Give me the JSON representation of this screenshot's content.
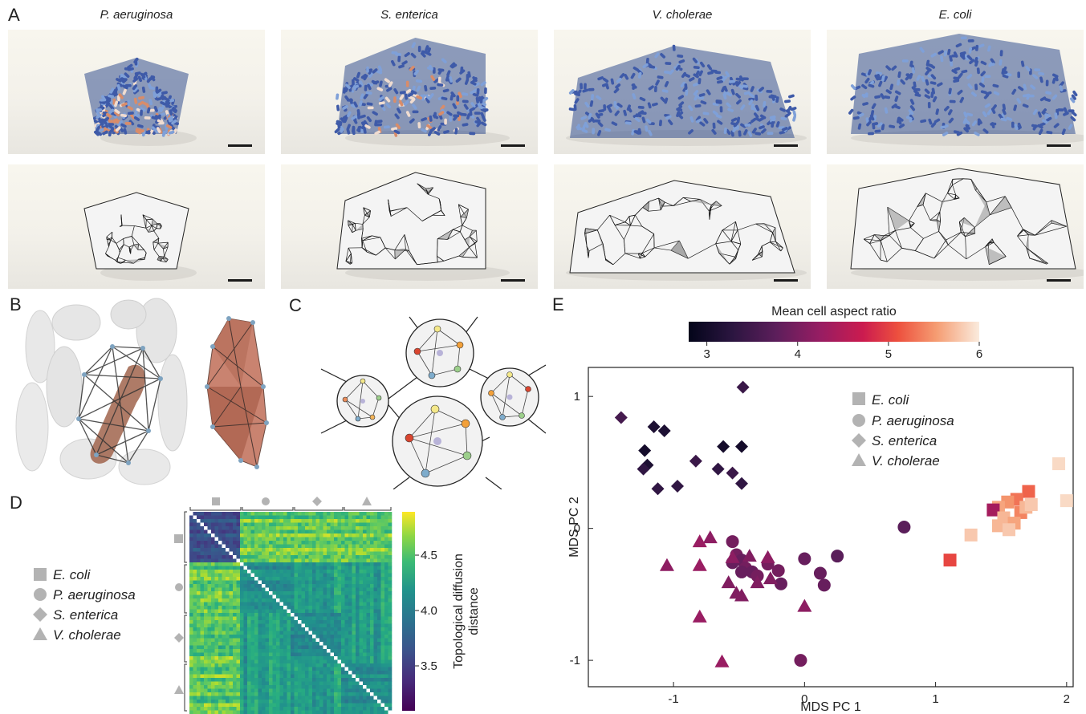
{
  "panels": {
    "a": "A",
    "b": "B",
    "c": "C",
    "d": "D",
    "e": "E"
  },
  "species_titles": [
    "P. aeruginosa",
    "S. enterica",
    "V. cholerae",
    "E. coli"
  ],
  "colors": {
    "cell_blue": "#3e5aa8",
    "cell_orange": "#d88c6a",
    "mesh_gray": "#bfbfbf",
    "marker_gray": "#b3b3b3",
    "viridis_low": "#440154",
    "viridis_high": "#fde725"
  },
  "legend_species": [
    "E. coli",
    "P. aeruginosa",
    "S. enterica",
    "V. cholerae"
  ],
  "heatmap": {
    "cbar_ticks": [
      "3.5",
      "4.0",
      "4.5"
    ],
    "cbar_label_line1": "Topological diffusion",
    "cbar_label_line2": "distance"
  },
  "chart_data": {
    "type": "scatter",
    "title": "",
    "xlabel": "MDS PC 1",
    "ylabel": "MDS PC 2",
    "xlim": [
      -1.65,
      2.05
    ],
    "ylim": [
      -1.2,
      1.22
    ],
    "xticks": [
      "-1",
      "0",
      "1",
      "2"
    ],
    "yticks": [
      "-1",
      "0",
      "1"
    ],
    "colorbar": {
      "label": "Mean cell aspect ratio",
      "range": [
        2.8,
        6.0
      ],
      "ticks": [
        "3",
        "4",
        "5",
        "6"
      ],
      "colormap": "rocket"
    },
    "legend_placement": "top-right",
    "series": [
      {
        "name": "E. coli",
        "marker": "square",
        "points": [
          {
            "x": 1.94,
            "y": 0.49,
            "c": 5.9
          },
          {
            "x": 2.0,
            "y": 0.21,
            "c": 5.9
          },
          {
            "x": 1.71,
            "y": 0.28,
            "c": 5.2
          },
          {
            "x": 1.62,
            "y": 0.22,
            "c": 5.3
          },
          {
            "x": 1.55,
            "y": 0.2,
            "c": 5.5
          },
          {
            "x": 1.48,
            "y": 0.16,
            "c": 5.6
          },
          {
            "x": 1.44,
            "y": 0.14,
            "c": 4.3
          },
          {
            "x": 1.65,
            "y": 0.12,
            "c": 5.4
          },
          {
            "x": 1.69,
            "y": 0.16,
            "c": 5.7
          },
          {
            "x": 1.73,
            "y": 0.18,
            "c": 5.8
          },
          {
            "x": 1.52,
            "y": 0.08,
            "c": 5.7
          },
          {
            "x": 1.6,
            "y": 0.04,
            "c": 5.6
          },
          {
            "x": 1.48,
            "y": 0.02,
            "c": 5.7
          },
          {
            "x": 1.56,
            "y": -0.01,
            "c": 5.8
          },
          {
            "x": 1.27,
            "y": -0.05,
            "c": 5.8
          },
          {
            "x": 1.11,
            "y": -0.24,
            "c": 5.0
          }
        ]
      },
      {
        "name": "P. aeruginosa",
        "marker": "circle",
        "points": [
          {
            "x": 0.76,
            "y": 0.01,
            "c": 3.7
          },
          {
            "x": -0.55,
            "y": -0.1,
            "c": 3.9
          },
          {
            "x": -0.52,
            "y": -0.2,
            "c": 3.9
          },
          {
            "x": -0.48,
            "y": -0.24,
            "c": 3.8
          },
          {
            "x": -0.55,
            "y": -0.26,
            "c": 3.8
          },
          {
            "x": -0.45,
            "y": -0.3,
            "c": 3.9
          },
          {
            "x": -0.4,
            "y": -0.33,
            "c": 3.8
          },
          {
            "x": -0.48,
            "y": -0.33,
            "c": 3.8
          },
          {
            "x": -0.36,
            "y": -0.36,
            "c": 3.9
          },
          {
            "x": -0.28,
            "y": -0.27,
            "c": 3.9
          },
          {
            "x": -0.2,
            "y": -0.32,
            "c": 3.9
          },
          {
            "x": -0.18,
            "y": -0.42,
            "c": 3.8
          },
          {
            "x": 0.0,
            "y": -0.23,
            "c": 3.8
          },
          {
            "x": 0.25,
            "y": -0.21,
            "c": 3.7
          },
          {
            "x": 0.12,
            "y": -0.34,
            "c": 3.8
          },
          {
            "x": 0.15,
            "y": -0.43,
            "c": 3.8
          },
          {
            "x": -0.03,
            "y": -1.0,
            "c": 3.9
          }
        ]
      },
      {
        "name": "S. enterica",
        "marker": "diamond",
        "points": [
          {
            "x": -1.4,
            "y": 0.84,
            "c": 3.5
          },
          {
            "x": -0.47,
            "y": 1.07,
            "c": 3.4
          },
          {
            "x": -1.15,
            "y": 0.77,
            "c": 3.1
          },
          {
            "x": -1.07,
            "y": 0.74,
            "c": 3.1
          },
          {
            "x": -1.22,
            "y": 0.59,
            "c": 3.0
          },
          {
            "x": -0.62,
            "y": 0.62,
            "c": 3.0
          },
          {
            "x": -0.48,
            "y": 0.62,
            "c": 3.0
          },
          {
            "x": -1.2,
            "y": 0.48,
            "c": 3.1
          },
          {
            "x": -1.23,
            "y": 0.45,
            "c": 3.3
          },
          {
            "x": -0.83,
            "y": 0.51,
            "c": 3.4
          },
          {
            "x": -0.66,
            "y": 0.45,
            "c": 3.3
          },
          {
            "x": -0.55,
            "y": 0.42,
            "c": 3.4
          },
          {
            "x": -1.12,
            "y": 0.3,
            "c": 3.3
          },
          {
            "x": -0.97,
            "y": 0.32,
            "c": 3.3
          },
          {
            "x": -0.48,
            "y": 0.34,
            "c": 3.3
          }
        ]
      },
      {
        "name": "V. cholerae",
        "marker": "triangle",
        "points": [
          {
            "x": -0.72,
            "y": -0.07,
            "c": 4.1
          },
          {
            "x": -0.8,
            "y": -0.1,
            "c": 4.2
          },
          {
            "x": -1.05,
            "y": -0.28,
            "c": 4.1
          },
          {
            "x": -0.8,
            "y": -0.28,
            "c": 4.2
          },
          {
            "x": -0.55,
            "y": -0.22,
            "c": 4.1
          },
          {
            "x": -0.42,
            "y": -0.21,
            "c": 4.0
          },
          {
            "x": -0.28,
            "y": -0.22,
            "c": 4.1
          },
          {
            "x": -0.58,
            "y": -0.41,
            "c": 4.0
          },
          {
            "x": -0.36,
            "y": -0.41,
            "c": 4.0
          },
          {
            "x": -0.26,
            "y": -0.38,
            "c": 4.0
          },
          {
            "x": -0.52,
            "y": -0.49,
            "c": 4.0
          },
          {
            "x": -0.48,
            "y": -0.51,
            "c": 4.0
          },
          {
            "x": -0.8,
            "y": -0.67,
            "c": 4.2
          },
          {
            "x": 0.0,
            "y": -0.59,
            "c": 4.1
          },
          {
            "x": -0.63,
            "y": -1.01,
            "c": 4.2
          }
        ]
      }
    ]
  }
}
